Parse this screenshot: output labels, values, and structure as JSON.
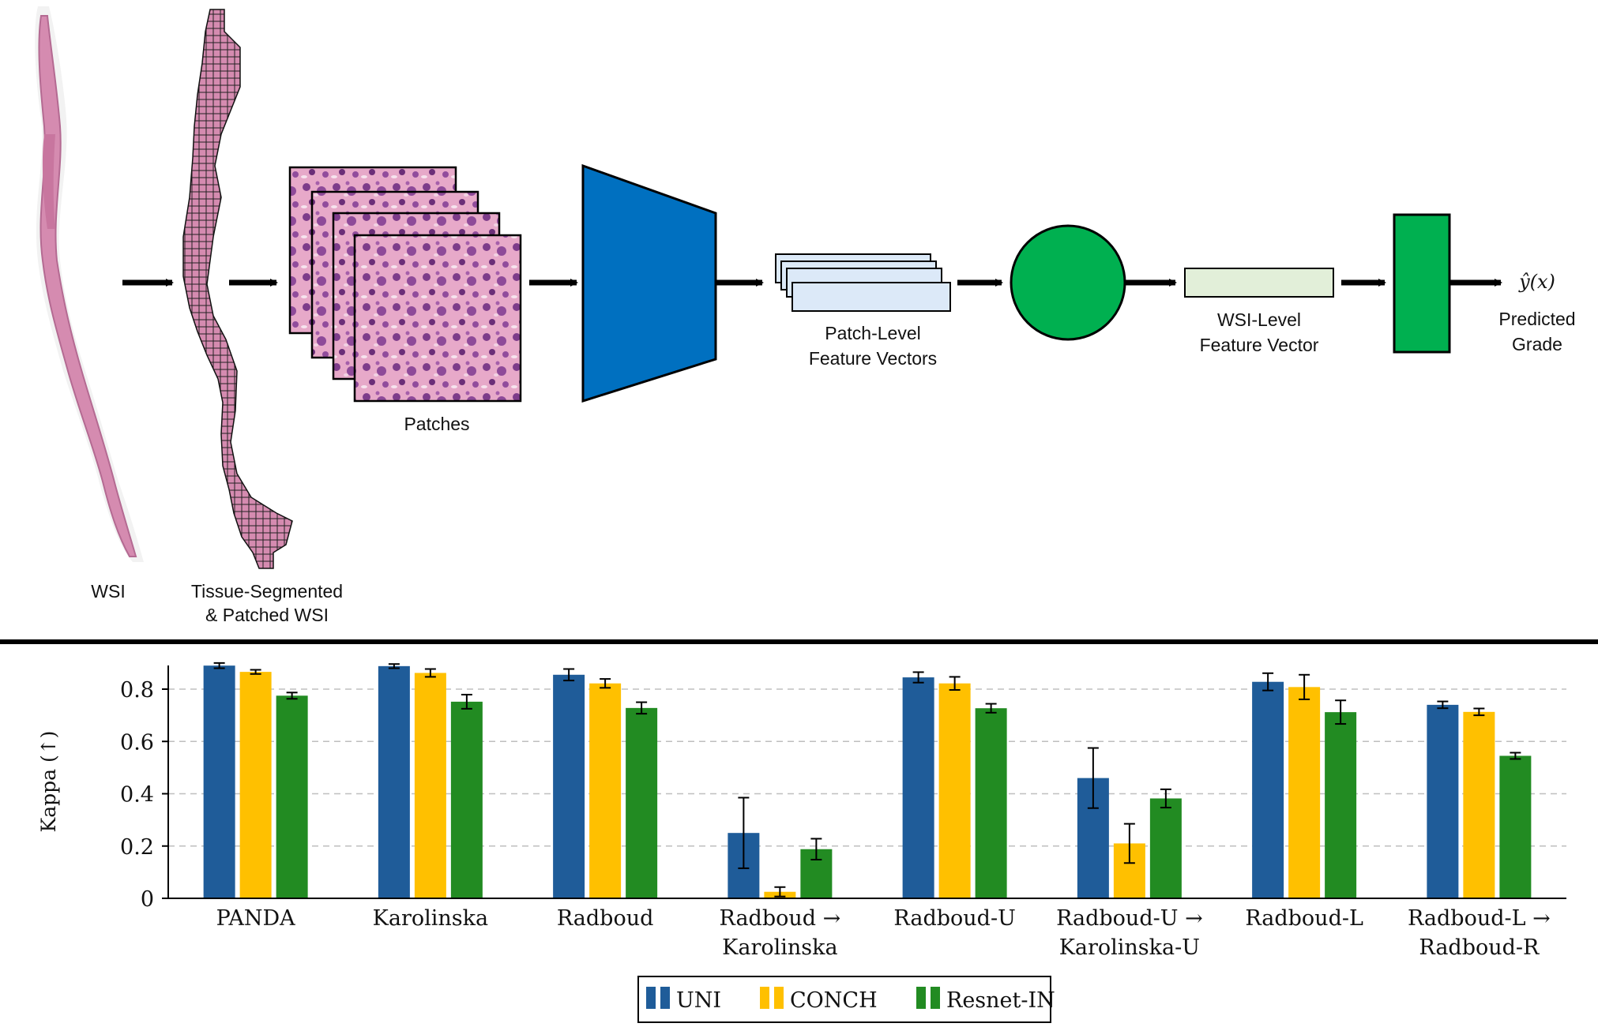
{
  "pipeline": {
    "wsi_label": "WSI",
    "segmented_label_line1": "Tissue-Segmented",
    "segmented_label_line2": "& Patched WSI",
    "patches_label": "Patches",
    "patch_features_label_line1": "Patch-Level",
    "patch_features_label_line2": "Feature Vectors",
    "wsi_feature_label_line1": "WSI-Level",
    "wsi_feature_label_line2": "Feature Vector",
    "output_symbol": "ŷ(x)",
    "output_label_line1": "Predicted",
    "output_label_line2": "Grade",
    "colors": {
      "encoder": "#0070C0",
      "aggregator": "#00B050",
      "feature_fill": "#DCE9F8",
      "wsi_feature_fill": "#E2EFD9",
      "tissue": "#D58BB0"
    }
  },
  "chart_data": {
    "type": "bar",
    "ylabel": "Kappa (↑)",
    "ylim": [
      0,
      0.95
    ],
    "yticks": [
      0,
      0.2,
      0.4,
      0.6,
      0.8
    ],
    "ytick_labels": [
      "0",
      "0.2",
      "0.4",
      "0.6",
      "0.8"
    ],
    "grid": "horizontal dashed",
    "legend_placement": "bottom-center",
    "categories": [
      [
        "PANDA"
      ],
      [
        "Karolinska"
      ],
      [
        "Radboud"
      ],
      [
        "Radboud →",
        "Karolinska"
      ],
      [
        "Radboud-U"
      ],
      [
        "Radboud-U →",
        "Karolinska-U"
      ],
      [
        "Radboud-L"
      ],
      [
        "Radboud-L →",
        "Radboud-R"
      ]
    ],
    "series": [
      {
        "name": "UNI",
        "color": "#1F5C99",
        "values": [
          0.89,
          0.888,
          0.855,
          0.25,
          0.845,
          0.46,
          0.828,
          0.74
        ],
        "errors": [
          0.01,
          0.008,
          0.022,
          0.135,
          0.02,
          0.115,
          0.033,
          0.013
        ]
      },
      {
        "name": "CONCH",
        "color": "#FFC000",
        "values": [
          0.866,
          0.862,
          0.822,
          0.025,
          0.822,
          0.21,
          0.808,
          0.713
        ],
        "errors": [
          0.008,
          0.015,
          0.017,
          0.018,
          0.025,
          0.075,
          0.047,
          0.013
        ]
      },
      {
        "name": "Resnet-IN",
        "color": "#228B22",
        "values": [
          0.775,
          0.752,
          0.728,
          0.188,
          0.727,
          0.382,
          0.712,
          0.545
        ],
        "errors": [
          0.012,
          0.027,
          0.022,
          0.04,
          0.017,
          0.035,
          0.045,
          0.012
        ]
      }
    ]
  }
}
